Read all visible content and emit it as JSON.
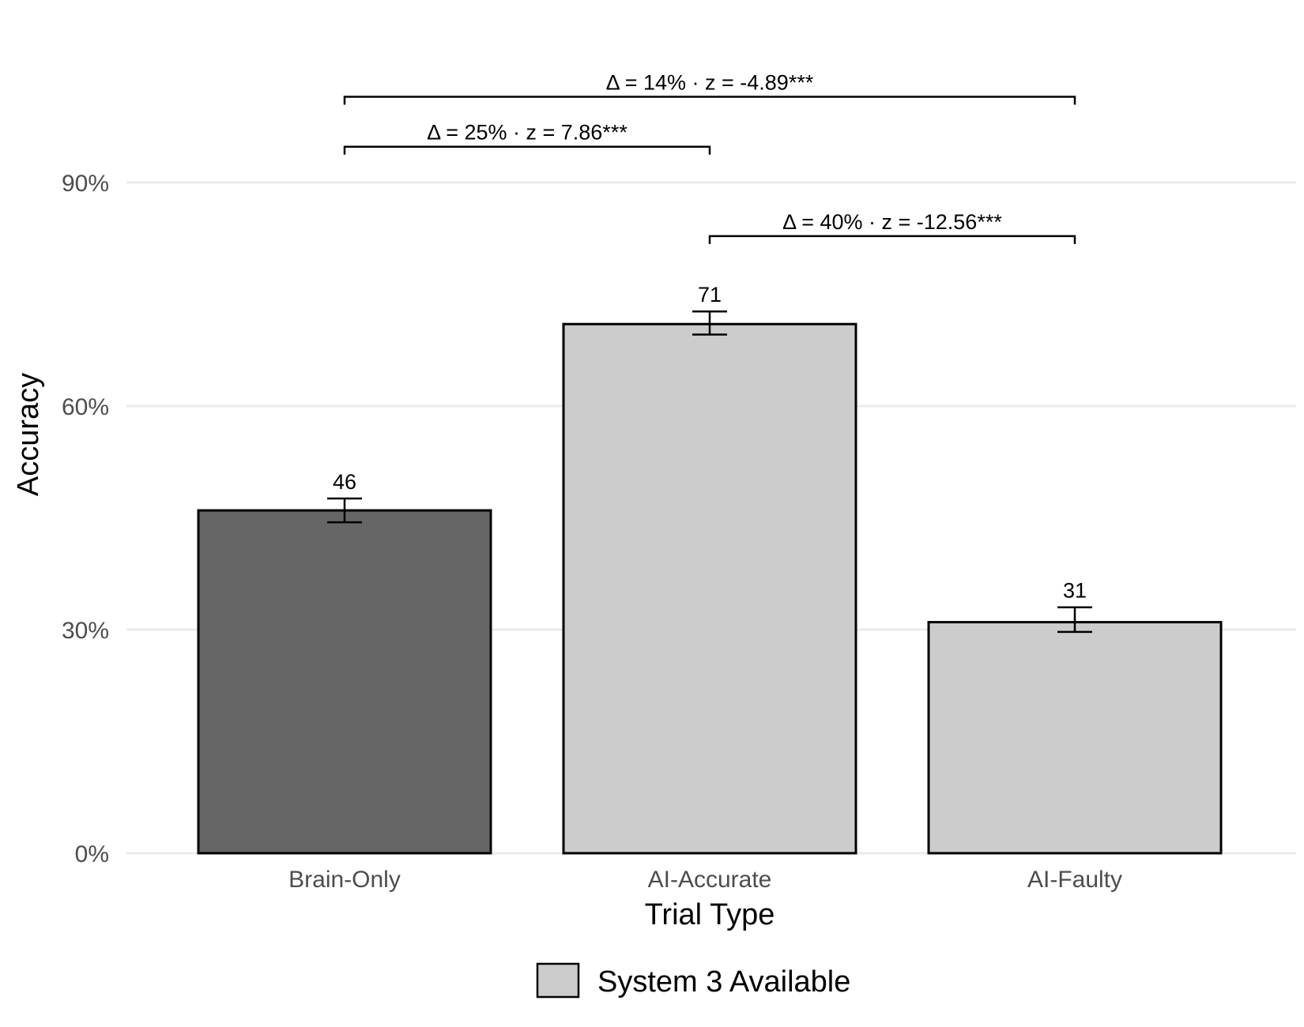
{
  "chart_data": {
    "type": "bar",
    "title": "",
    "xlabel": "Trial Type",
    "ylabel": "Accuracy",
    "categories": [
      "Brain-Only",
      "AI-Accurate",
      "AI-Faulty"
    ],
    "values": [
      46,
      71,
      31
    ],
    "data_labels": [
      "46",
      "71",
      "31"
    ],
    "error_bars": [
      {
        "low": 44.4,
        "high": 47.6
      },
      {
        "low": 69.6,
        "high": 72.7
      },
      {
        "low": 29.7,
        "high": 33.0
      }
    ],
    "bar_colors": [
      "#666666",
      "#cccccc",
      "#cccccc"
    ],
    "ylim": [
      0,
      100
    ],
    "yticks": [
      0,
      30,
      60,
      90
    ],
    "ytick_labels": [
      "0%",
      "30%",
      "60%",
      "90%"
    ],
    "grid": true,
    "legend": {
      "placement": "bottom",
      "entries": [
        {
          "label": "System 3 Available",
          "color": "#cccccc"
        }
      ]
    },
    "annotations": [
      {
        "from": 0,
        "to": 2,
        "y": 101.5,
        "label": "Δ = 14% · z  = -4.89***"
      },
      {
        "from": 0,
        "to": 1,
        "y": 94.8,
        "label": "Δ = 25% · z  = 7.86***"
      },
      {
        "from": 1,
        "to": 2,
        "y": 82.8,
        "label": "Δ = 40% · z  = -12.56***"
      }
    ]
  }
}
